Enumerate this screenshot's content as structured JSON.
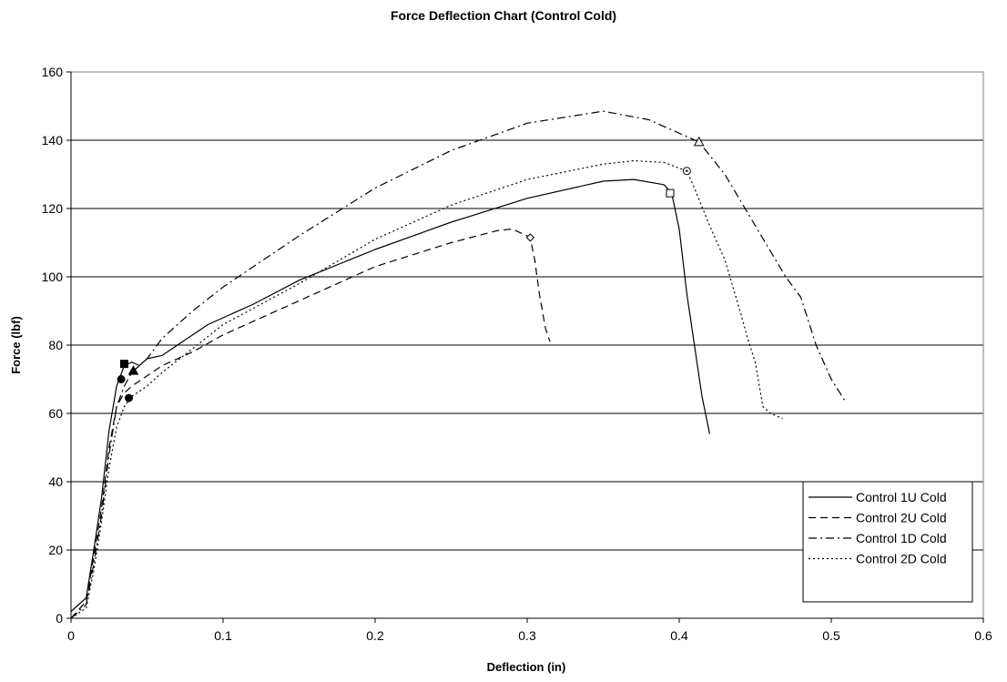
{
  "chart_data": {
    "type": "line",
    "title": "Force Deflection Chart (Control Cold)",
    "xlabel": "Deflection (in)",
    "ylabel": "Force (lbf)",
    "xlim": [
      0,
      0.6
    ],
    "ylim": [
      0,
      160
    ],
    "x_ticks": [
      "0",
      "0.1",
      "0.2",
      "0.3",
      "0.4",
      "0.5",
      "0.6"
    ],
    "y_ticks": [
      "0",
      "20",
      "40",
      "60",
      "80",
      "100",
      "120",
      "140",
      "160"
    ],
    "grid": "horizontal",
    "legend_position": "bottom-right",
    "series": [
      {
        "name": "Control 1U Cold",
        "style": "solid",
        "points": [
          [
            0,
            2
          ],
          [
            0.01,
            6
          ],
          [
            0.015,
            20
          ],
          [
            0.02,
            35
          ],
          [
            0.025,
            55
          ],
          [
            0.03,
            68
          ],
          [
            0.035,
            74
          ],
          [
            0.04,
            75
          ],
          [
            0.045,
            74
          ],
          [
            0.05,
            76
          ],
          [
            0.06,
            77
          ],
          [
            0.07,
            80
          ],
          [
            0.08,
            83
          ],
          [
            0.09,
            86
          ],
          [
            0.1,
            88
          ],
          [
            0.12,
            92
          ],
          [
            0.15,
            99
          ],
          [
            0.2,
            108
          ],
          [
            0.25,
            116
          ],
          [
            0.3,
            123
          ],
          [
            0.35,
            128
          ],
          [
            0.37,
            128.5
          ],
          [
            0.39,
            127
          ],
          [
            0.395,
            124.5
          ],
          [
            0.4,
            114
          ],
          [
            0.405,
            95
          ],
          [
            0.41,
            80
          ],
          [
            0.415,
            65
          ],
          [
            0.42,
            54
          ]
        ],
        "markers": [
          {
            "x": 0.035,
            "y": 74.5,
            "shape": "filled-square"
          },
          {
            "x": 0.394,
            "y": 124.5,
            "shape": "open-square"
          }
        ]
      },
      {
        "name": "Control 2U Cold",
        "style": "dashed",
        "points": [
          [
            0,
            0
          ],
          [
            0.01,
            5
          ],
          [
            0.015,
            18
          ],
          [
            0.02,
            32
          ],
          [
            0.025,
            50
          ],
          [
            0.03,
            62
          ],
          [
            0.035,
            66
          ],
          [
            0.04,
            68
          ],
          [
            0.05,
            71
          ],
          [
            0.06,
            74
          ],
          [
            0.08,
            78
          ],
          [
            0.1,
            83
          ],
          [
            0.15,
            93
          ],
          [
            0.2,
            103
          ],
          [
            0.25,
            110
          ],
          [
            0.28,
            113.5
          ],
          [
            0.29,
            114
          ],
          [
            0.3,
            112
          ],
          [
            0.302,
            111.5
          ],
          [
            0.305,
            105
          ],
          [
            0.308,
            95
          ],
          [
            0.312,
            85
          ],
          [
            0.315,
            81
          ]
        ],
        "markers": [
          {
            "x": 0.033,
            "y": 70,
            "shape": "filled-circle"
          },
          {
            "x": 0.302,
            "y": 111.5,
            "shape": "open-diamond"
          }
        ]
      },
      {
        "name": "Control 1D Cold",
        "style": "dash-dot",
        "points": [
          [
            0,
            0
          ],
          [
            0.01,
            4
          ],
          [
            0.015,
            16
          ],
          [
            0.02,
            30
          ],
          [
            0.025,
            48
          ],
          [
            0.03,
            62
          ],
          [
            0.035,
            68
          ],
          [
            0.04,
            72
          ],
          [
            0.05,
            76
          ],
          [
            0.06,
            82
          ],
          [
            0.08,
            90
          ],
          [
            0.1,
            97
          ],
          [
            0.15,
            112
          ],
          [
            0.2,
            126
          ],
          [
            0.25,
            137
          ],
          [
            0.3,
            145
          ],
          [
            0.35,
            148.5
          ],
          [
            0.38,
            146
          ],
          [
            0.413,
            139.5
          ],
          [
            0.43,
            130
          ],
          [
            0.45,
            115
          ],
          [
            0.47,
            100
          ],
          [
            0.48,
            94
          ],
          [
            0.49,
            80
          ],
          [
            0.5,
            70
          ],
          [
            0.51,
            63
          ]
        ],
        "markers": [
          {
            "x": 0.041,
            "y": 72.5,
            "shape": "filled-triangle"
          },
          {
            "x": 0.413,
            "y": 139.5,
            "shape": "open-triangle"
          }
        ]
      },
      {
        "name": "Control 2D Cold",
        "style": "dotted",
        "points": [
          [
            0,
            0
          ],
          [
            0.01,
            3
          ],
          [
            0.015,
            14
          ],
          [
            0.02,
            28
          ],
          [
            0.025,
            44
          ],
          [
            0.03,
            56
          ],
          [
            0.035,
            62
          ],
          [
            0.04,
            65
          ],
          [
            0.05,
            68
          ],
          [
            0.06,
            72
          ],
          [
            0.08,
            79
          ],
          [
            0.1,
            86
          ],
          [
            0.15,
            98
          ],
          [
            0.2,
            111
          ],
          [
            0.25,
            121
          ],
          [
            0.3,
            128.5
          ],
          [
            0.35,
            133
          ],
          [
            0.37,
            134
          ],
          [
            0.39,
            133.5
          ],
          [
            0.405,
            131
          ],
          [
            0.41,
            126
          ],
          [
            0.42,
            115
          ],
          [
            0.43,
            105
          ],
          [
            0.44,
            90
          ],
          [
            0.445,
            82
          ],
          [
            0.45,
            75
          ],
          [
            0.455,
            62
          ],
          [
            0.46,
            60
          ],
          [
            0.468,
            58.5
          ]
        ],
        "markers": [
          {
            "x": 0.038,
            "y": 64.5,
            "shape": "filled-circle"
          },
          {
            "x": 0.405,
            "y": 131,
            "shape": "open-circle-dot"
          }
        ]
      }
    ]
  }
}
